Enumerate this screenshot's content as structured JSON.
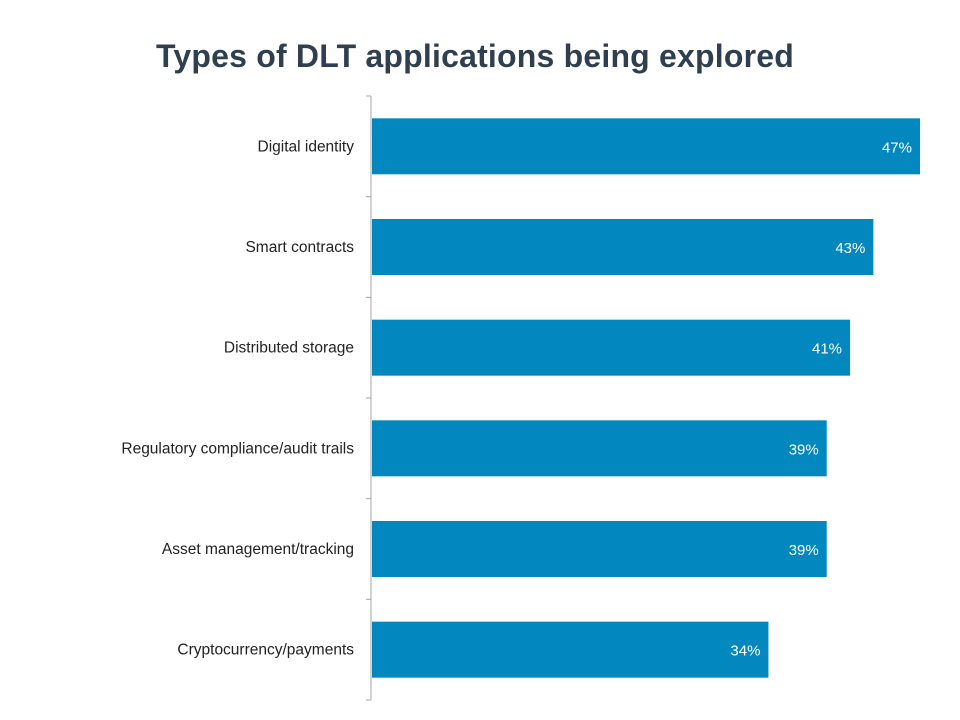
{
  "chart_data": {
    "type": "bar",
    "orientation": "horizontal",
    "title": "Types of DLT applications being explored",
    "categories": [
      "Digital identity",
      "Smart contracts",
      "Distributed storage",
      "Regulatory compliance/audit trails",
      "Asset management/tracking",
      "Cryptocurrency/payments"
    ],
    "values": [
      47,
      43,
      41,
      39,
      39,
      34
    ],
    "value_labels": [
      "47%",
      "43%",
      "41%",
      "39%",
      "39%",
      "34%"
    ],
    "unit": "%",
    "xlim": [
      0,
      47
    ],
    "grid": false,
    "legend": "none",
    "bar_color": "#0288be",
    "label_color": "#ffffff"
  }
}
